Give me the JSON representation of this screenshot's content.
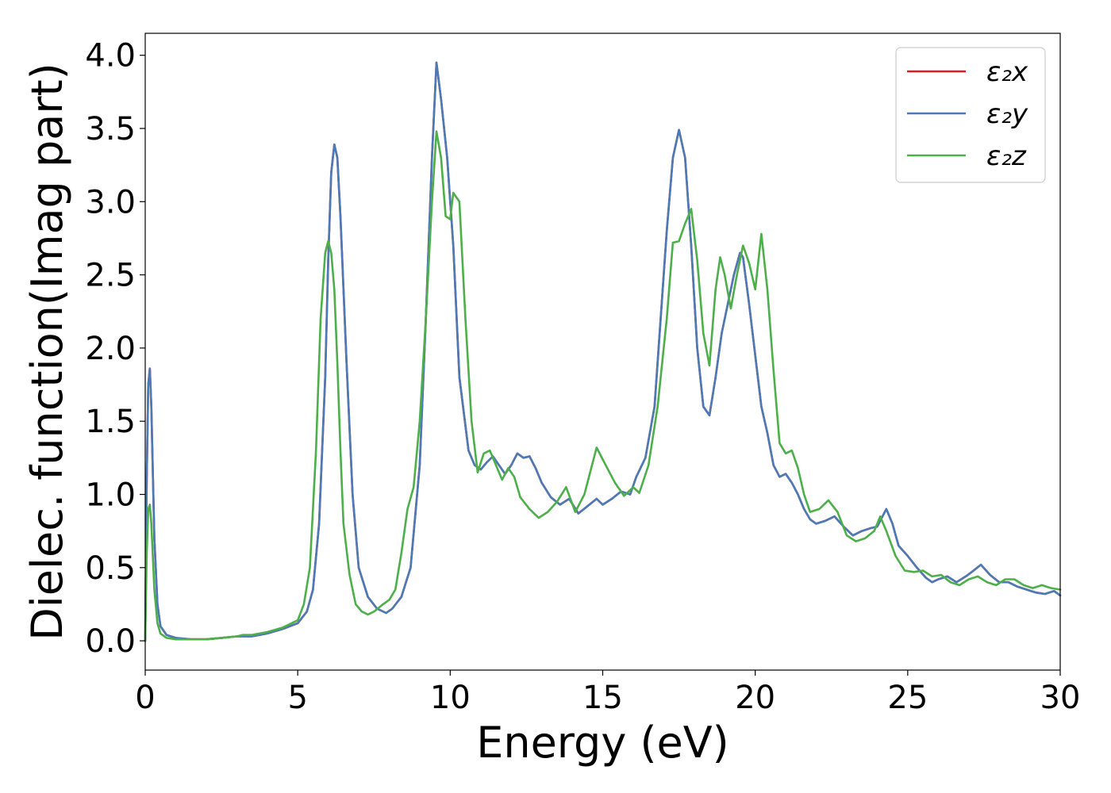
{
  "chart_data": {
    "type": "line",
    "title": "",
    "xlabel": "Energy (eV)",
    "ylabel": "Dielec. function(Imag part)",
    "xlim": [
      0,
      30
    ],
    "ylim": [
      -0.2,
      4.15
    ],
    "xticks": [
      0,
      5,
      10,
      15,
      20,
      25,
      30
    ],
    "xtick_labels": [
      "0",
      "5",
      "10",
      "15",
      "20",
      "25",
      "30"
    ],
    "yticks": [
      0.0,
      0.5,
      1.0,
      1.5,
      2.0,
      2.5,
      3.0,
      3.5,
      4.0
    ],
    "ytick_labels": [
      "0.0",
      "0.5",
      "1.0",
      "1.5",
      "2.0",
      "2.5",
      "3.0",
      "3.5",
      "4.0"
    ],
    "grid": false,
    "legend_position": "top-right",
    "series": [
      {
        "name": "ε₂x",
        "color": "#e41a1c",
        "x": [
          0,
          0.05,
          0.1,
          0.15,
          0.2,
          0.3,
          0.4,
          0.5,
          0.7,
          1.0,
          1.5,
          2.0,
          2.5,
          3.0,
          3.2,
          3.5,
          4.0,
          4.5,
          5.0,
          5.3,
          5.5,
          5.7,
          5.9,
          6.0,
          6.1,
          6.2,
          6.3,
          6.4,
          6.6,
          6.8,
          7.0,
          7.3,
          7.6,
          7.9,
          8.1,
          8.4,
          8.7,
          9.0,
          9.2,
          9.4,
          9.55,
          9.7,
          9.9,
          10.1,
          10.3,
          10.6,
          10.8,
          11.0,
          11.2,
          11.4,
          11.6,
          11.8,
          12.0,
          12.2,
          12.4,
          12.6,
          12.8,
          13.0,
          13.3,
          13.6,
          13.9,
          14.2,
          14.5,
          14.8,
          15.0,
          15.3,
          15.6,
          15.9,
          16.1,
          16.4,
          16.7,
          16.9,
          17.1,
          17.3,
          17.5,
          17.7,
          17.9,
          18.1,
          18.3,
          18.5,
          18.7,
          18.9,
          19.1,
          19.3,
          19.5,
          19.6,
          19.8,
          20.0,
          20.2,
          20.4,
          20.6,
          20.8,
          21.0,
          21.2,
          21.4,
          21.6,
          21.8,
          22.0,
          22.3,
          22.6,
          22.9,
          23.2,
          23.5,
          23.8,
          24.0,
          24.1,
          24.3,
          24.5,
          24.7,
          25.0,
          25.3,
          25.6,
          25.8,
          26.0,
          26.3,
          26.6,
          26.9,
          27.1,
          27.4,
          27.7,
          28.0,
          28.3,
          28.6,
          28.9,
          29.2,
          29.5,
          29.8,
          30.0
        ],
        "y": [
          0.0,
          1.1,
          1.75,
          1.86,
          1.6,
          0.7,
          0.25,
          0.1,
          0.04,
          0.02,
          0.01,
          0.01,
          0.02,
          0.03,
          0.03,
          0.03,
          0.05,
          0.08,
          0.12,
          0.2,
          0.35,
          0.8,
          1.8,
          2.6,
          3.2,
          3.39,
          3.3,
          2.9,
          1.9,
          1.0,
          0.5,
          0.3,
          0.22,
          0.19,
          0.22,
          0.3,
          0.5,
          1.2,
          2.2,
          3.3,
          3.95,
          3.7,
          3.3,
          2.7,
          1.8,
          1.3,
          1.2,
          1.17,
          1.22,
          1.26,
          1.2,
          1.14,
          1.2,
          1.28,
          1.25,
          1.26,
          1.18,
          1.08,
          0.98,
          0.93,
          0.97,
          0.87,
          0.92,
          0.97,
          0.93,
          0.97,
          1.02,
          1.0,
          1.12,
          1.25,
          1.6,
          2.2,
          2.8,
          3.3,
          3.49,
          3.3,
          2.7,
          2.0,
          1.6,
          1.54,
          1.8,
          2.1,
          2.3,
          2.5,
          2.65,
          2.62,
          2.3,
          1.95,
          1.6,
          1.42,
          1.2,
          1.12,
          1.14,
          1.08,
          1.0,
          0.9,
          0.83,
          0.8,
          0.82,
          0.85,
          0.78,
          0.72,
          0.75,
          0.77,
          0.78,
          0.82,
          0.9,
          0.8,
          0.65,
          0.58,
          0.5,
          0.43,
          0.4,
          0.42,
          0.44,
          0.4,
          0.44,
          0.47,
          0.52,
          0.45,
          0.4,
          0.4,
          0.37,
          0.35,
          0.33,
          0.32,
          0.34,
          0.31
        ]
      },
      {
        "name": "ε₂y",
        "color": "#4a7bb7",
        "x": [
          0,
          0.05,
          0.1,
          0.15,
          0.2,
          0.3,
          0.4,
          0.5,
          0.7,
          1.0,
          1.5,
          2.0,
          2.5,
          3.0,
          3.2,
          3.5,
          4.0,
          4.5,
          5.0,
          5.3,
          5.5,
          5.7,
          5.9,
          6.0,
          6.1,
          6.2,
          6.3,
          6.4,
          6.6,
          6.8,
          7.0,
          7.3,
          7.6,
          7.9,
          8.1,
          8.4,
          8.7,
          9.0,
          9.2,
          9.4,
          9.55,
          9.7,
          9.9,
          10.1,
          10.3,
          10.6,
          10.8,
          11.0,
          11.2,
          11.4,
          11.6,
          11.8,
          12.0,
          12.2,
          12.4,
          12.6,
          12.8,
          13.0,
          13.3,
          13.6,
          13.9,
          14.2,
          14.5,
          14.8,
          15.0,
          15.3,
          15.6,
          15.9,
          16.1,
          16.4,
          16.7,
          16.9,
          17.1,
          17.3,
          17.5,
          17.7,
          17.9,
          18.1,
          18.3,
          18.5,
          18.7,
          18.9,
          19.1,
          19.3,
          19.5,
          19.6,
          19.8,
          20.0,
          20.2,
          20.4,
          20.6,
          20.8,
          21.0,
          21.2,
          21.4,
          21.6,
          21.8,
          22.0,
          22.3,
          22.6,
          22.9,
          23.2,
          23.5,
          23.8,
          24.0,
          24.1,
          24.3,
          24.5,
          24.7,
          25.0,
          25.3,
          25.6,
          25.8,
          26.0,
          26.3,
          26.6,
          26.9,
          27.1,
          27.4,
          27.7,
          28.0,
          28.3,
          28.6,
          28.9,
          29.2,
          29.5,
          29.8,
          30.0
        ],
        "y": [
          0.0,
          1.1,
          1.75,
          1.86,
          1.6,
          0.7,
          0.25,
          0.1,
          0.04,
          0.02,
          0.01,
          0.01,
          0.02,
          0.03,
          0.03,
          0.03,
          0.05,
          0.08,
          0.12,
          0.2,
          0.35,
          0.8,
          1.8,
          2.6,
          3.2,
          3.39,
          3.3,
          2.9,
          1.9,
          1.0,
          0.5,
          0.3,
          0.22,
          0.19,
          0.22,
          0.3,
          0.5,
          1.2,
          2.2,
          3.3,
          3.95,
          3.7,
          3.3,
          2.7,
          1.8,
          1.3,
          1.2,
          1.17,
          1.22,
          1.26,
          1.2,
          1.14,
          1.2,
          1.28,
          1.25,
          1.26,
          1.18,
          1.08,
          0.98,
          0.93,
          0.97,
          0.87,
          0.92,
          0.97,
          0.93,
          0.97,
          1.02,
          1.0,
          1.12,
          1.25,
          1.6,
          2.2,
          2.8,
          3.3,
          3.49,
          3.3,
          2.7,
          2.0,
          1.6,
          1.54,
          1.8,
          2.1,
          2.3,
          2.5,
          2.65,
          2.62,
          2.3,
          1.95,
          1.6,
          1.42,
          1.2,
          1.12,
          1.14,
          1.08,
          1.0,
          0.9,
          0.83,
          0.8,
          0.82,
          0.85,
          0.78,
          0.72,
          0.75,
          0.77,
          0.78,
          0.82,
          0.9,
          0.8,
          0.65,
          0.58,
          0.5,
          0.43,
          0.4,
          0.42,
          0.44,
          0.4,
          0.44,
          0.47,
          0.52,
          0.45,
          0.4,
          0.4,
          0.37,
          0.35,
          0.33,
          0.32,
          0.34,
          0.31
        ]
      },
      {
        "name": "ε₂z",
        "color": "#4daf4a",
        "x": [
          0,
          0.05,
          0.1,
          0.15,
          0.2,
          0.3,
          0.4,
          0.5,
          0.7,
          1.0,
          1.5,
          2.0,
          2.5,
          3.0,
          3.2,
          3.5,
          4.0,
          4.5,
          5.0,
          5.2,
          5.4,
          5.6,
          5.75,
          5.9,
          6.0,
          6.1,
          6.2,
          6.3,
          6.4,
          6.5,
          6.7,
          6.9,
          7.1,
          7.3,
          7.5,
          7.8,
          8.0,
          8.2,
          8.4,
          8.6,
          8.8,
          9.0,
          9.2,
          9.4,
          9.55,
          9.7,
          9.85,
          10.0,
          10.1,
          10.3,
          10.5,
          10.7,
          10.9,
          11.1,
          11.3,
          11.5,
          11.7,
          11.9,
          12.1,
          12.3,
          12.6,
          12.9,
          13.2,
          13.5,
          13.8,
          14.1,
          14.4,
          14.8,
          15.1,
          15.4,
          15.7,
          16.0,
          16.2,
          16.5,
          16.8,
          17.1,
          17.3,
          17.5,
          17.7,
          17.9,
          18.1,
          18.3,
          18.5,
          18.7,
          18.85,
          19.0,
          19.2,
          19.4,
          19.6,
          19.8,
          20.0,
          20.2,
          20.4,
          20.6,
          20.8,
          21.0,
          21.2,
          21.4,
          21.6,
          21.8,
          22.1,
          22.4,
          22.7,
          23.0,
          23.3,
          23.6,
          23.9,
          24.1,
          24.3,
          24.6,
          24.9,
          25.2,
          25.5,
          25.8,
          26.1,
          26.4,
          26.7,
          27.0,
          27.3,
          27.6,
          27.9,
          28.2,
          28.5,
          28.8,
          29.1,
          29.4,
          29.7,
          30.0
        ],
        "y": [
          0.0,
          0.6,
          0.9,
          0.93,
          0.8,
          0.35,
          0.12,
          0.05,
          0.02,
          0.01,
          0.01,
          0.01,
          0.02,
          0.03,
          0.04,
          0.04,
          0.06,
          0.09,
          0.14,
          0.25,
          0.5,
          1.3,
          2.2,
          2.65,
          2.73,
          2.65,
          2.4,
          1.9,
          1.3,
          0.8,
          0.45,
          0.25,
          0.2,
          0.18,
          0.2,
          0.25,
          0.28,
          0.35,
          0.6,
          0.9,
          1.05,
          1.5,
          2.2,
          3.0,
          3.48,
          3.3,
          2.9,
          2.88,
          3.06,
          3.0,
          2.2,
          1.5,
          1.15,
          1.28,
          1.3,
          1.2,
          1.1,
          1.18,
          1.12,
          0.98,
          0.9,
          0.84,
          0.88,
          0.95,
          1.05,
          0.88,
          1.0,
          1.32,
          1.2,
          1.08,
          0.99,
          1.05,
          1.01,
          1.2,
          1.6,
          2.2,
          2.72,
          2.73,
          2.85,
          2.95,
          2.6,
          2.1,
          1.88,
          2.4,
          2.62,
          2.5,
          2.27,
          2.5,
          2.7,
          2.58,
          2.4,
          2.78,
          2.4,
          1.85,
          1.35,
          1.28,
          1.3,
          1.18,
          1.0,
          0.88,
          0.9,
          0.96,
          0.88,
          0.72,
          0.68,
          0.7,
          0.75,
          0.85,
          0.75,
          0.58,
          0.48,
          0.47,
          0.48,
          0.44,
          0.45,
          0.4,
          0.38,
          0.42,
          0.44,
          0.4,
          0.38,
          0.42,
          0.42,
          0.38,
          0.36,
          0.38,
          0.36,
          0.35
        ]
      }
    ]
  }
}
